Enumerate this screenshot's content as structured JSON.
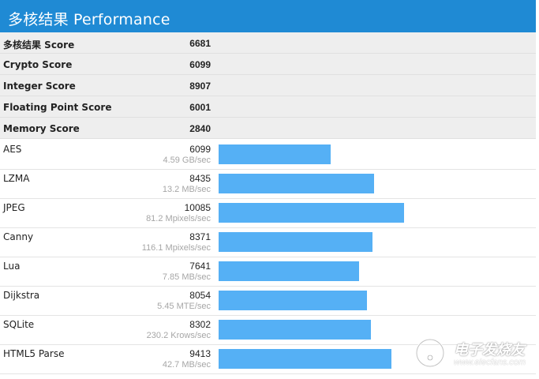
{
  "header": {
    "title": "多核结果 Performance"
  },
  "scores": [
    {
      "label": "多核结果 Score",
      "value": "6681"
    },
    {
      "label": "Crypto Score",
      "value": "6099"
    },
    {
      "label": "Integer Score",
      "value": "8907"
    },
    {
      "label": "Floating Point Score",
      "value": "6001"
    },
    {
      "label": "Memory Score",
      "value": "2840"
    }
  ],
  "benchmarks": [
    {
      "name": "AES",
      "score": 6099,
      "rate": "4.59 GB/sec"
    },
    {
      "name": "LZMA",
      "score": 8435,
      "rate": "13.2 MB/sec"
    },
    {
      "name": "JPEG",
      "score": 10085,
      "rate": "81.2 Mpixels/sec"
    },
    {
      "name": "Canny",
      "score": 8371,
      "rate": "116.1 Mpixels/sec"
    },
    {
      "name": "Lua",
      "score": 7641,
      "rate": "7.85 MB/sec"
    },
    {
      "name": "Dijkstra",
      "score": 8054,
      "rate": "5.45 MTE/sec"
    },
    {
      "name": "SQLite",
      "score": 8302,
      "rate": "230.2 Krows/sec"
    },
    {
      "name": "HTML5 Parse",
      "score": 9413,
      "rate": "42.7 MB/sec"
    }
  ],
  "colors": {
    "header": "#1f8ad4",
    "bar": "#55b0f5"
  },
  "watermark": {
    "text": "电子发烧友",
    "url": "www.elecfans.com"
  }
}
